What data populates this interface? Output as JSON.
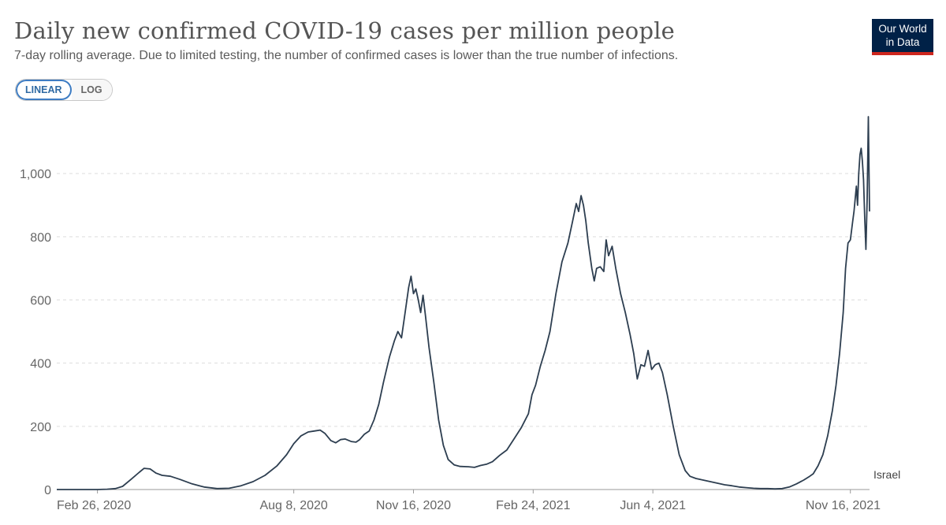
{
  "title": "Daily new confirmed COVID-19 cases per million people",
  "subtitle": "7-day rolling average. Due to limited testing, the number of confirmed cases is lower than the true number of infections.",
  "scale_toggle": {
    "linear_label": "LINEAR",
    "log_label": "LOG",
    "selected": "LINEAR"
  },
  "logo": {
    "line1": "Our World",
    "line2": "in Data"
  },
  "colors": {
    "line": "#2d3e50",
    "grid": "#dddddd",
    "logo_bg": "#002147",
    "logo_accent": "#ce261e",
    "toggle_accent": "#3d7cc3"
  },
  "chart_data": {
    "type": "line",
    "title": "Daily new confirmed COVID-19 cases per million people",
    "subtitle": "7-day rolling average. Due to limited testing, the number of confirmed cases is lower than the true number of infections.",
    "ylim": [
      0,
      1200
    ],
    "xlim": [
      "2020-01-23",
      "2021-12-02"
    ],
    "y_ticks": [
      {
        "value": 0,
        "label": "0"
      },
      {
        "value": 200,
        "label": "200"
      },
      {
        "value": 400,
        "label": "400"
      },
      {
        "value": 600,
        "label": "600"
      },
      {
        "value": 800,
        "label": "800"
      },
      {
        "value": 1000,
        "label": "1,000"
      }
    ],
    "x_ticks": [
      {
        "value": "2020-02-26",
        "label": "Feb 26, 2020"
      },
      {
        "value": "2020-08-08",
        "label": "Aug 8, 2020"
      },
      {
        "value": "2020-11-16",
        "label": "Nov 16, 2020"
      },
      {
        "value": "2021-02-24",
        "label": "Feb 24, 2021"
      },
      {
        "value": "2021-06-04",
        "label": "Jun 4, 2021"
      },
      {
        "value": "2021-11-16",
        "label": "Nov 16, 2021"
      }
    ],
    "grid": true,
    "legend": "end-of-line label",
    "series": [
      {
        "name": "Israel",
        "points": [
          [
            "2020-01-23",
            0
          ],
          [
            "2020-02-26",
            0
          ],
          [
            "2020-03-05",
            1
          ],
          [
            "2020-03-12",
            3
          ],
          [
            "2020-03-18",
            10
          ],
          [
            "2020-03-25",
            32
          ],
          [
            "2020-04-01",
            55
          ],
          [
            "2020-04-05",
            67
          ],
          [
            "2020-04-10",
            65
          ],
          [
            "2020-04-15",
            52
          ],
          [
            "2020-04-20",
            45
          ],
          [
            "2020-04-27",
            42
          ],
          [
            "2020-05-05",
            32
          ],
          [
            "2020-05-15",
            18
          ],
          [
            "2020-05-25",
            8
          ],
          [
            "2020-06-05",
            3
          ],
          [
            "2020-06-15",
            4
          ],
          [
            "2020-06-25",
            12
          ],
          [
            "2020-07-05",
            25
          ],
          [
            "2020-07-15",
            45
          ],
          [
            "2020-07-25",
            75
          ],
          [
            "2020-08-02",
            110
          ],
          [
            "2020-08-08",
            145
          ],
          [
            "2020-08-14",
            170
          ],
          [
            "2020-08-20",
            182
          ],
          [
            "2020-08-25",
            185
          ],
          [
            "2020-08-30",
            188
          ],
          [
            "2020-09-03",
            178
          ],
          [
            "2020-09-08",
            155
          ],
          [
            "2020-09-12",
            148
          ],
          [
            "2020-09-16",
            158
          ],
          [
            "2020-09-20",
            160
          ],
          [
            "2020-09-25",
            152
          ],
          [
            "2020-09-29",
            150
          ],
          [
            "2020-10-02",
            158
          ],
          [
            "2020-10-06",
            175
          ],
          [
            "2020-10-10",
            185
          ],
          [
            "2020-10-14",
            220
          ],
          [
            "2020-10-18",
            270
          ],
          [
            "2020-10-22",
            340
          ],
          [
            "2020-10-27",
            420
          ],
          [
            "2020-10-31",
            470
          ],
          [
            "2020-11-03",
            500
          ],
          [
            "2020-11-06",
            480
          ],
          [
            "2020-11-09",
            560
          ],
          [
            "2020-11-12",
            640
          ],
          [
            "2020-11-14",
            675
          ],
          [
            "2020-11-16",
            620
          ],
          [
            "2020-11-18",
            635
          ],
          [
            "2020-11-20",
            600
          ],
          [
            "2020-11-22",
            560
          ],
          [
            "2020-11-24",
            615
          ],
          [
            "2020-11-26",
            550
          ],
          [
            "2020-11-29",
            450
          ],
          [
            "2020-12-03",
            340
          ],
          [
            "2020-12-07",
            220
          ],
          [
            "2020-12-11",
            140
          ],
          [
            "2020-12-15",
            95
          ],
          [
            "2020-12-20",
            78
          ],
          [
            "2020-12-25",
            73
          ],
          [
            "2021-01-01",
            72
          ],
          [
            "2021-01-06",
            70
          ],
          [
            "2021-01-11",
            76
          ],
          [
            "2021-01-16",
            80
          ],
          [
            "2021-01-21",
            88
          ],
          [
            "2021-01-27",
            108
          ],
          [
            "2021-02-02",
            125
          ],
          [
            "2021-02-08",
            160
          ],
          [
            "2021-02-14",
            195
          ],
          [
            "2021-02-20",
            240
          ],
          [
            "2021-02-23",
            300
          ],
          [
            "2021-02-26",
            330
          ],
          [
            "2021-03-02",
            390
          ],
          [
            "2021-03-06",
            440
          ],
          [
            "2021-03-10",
            500
          ],
          [
            "2021-03-15",
            620
          ],
          [
            "2021-03-20",
            720
          ],
          [
            "2021-03-25",
            780
          ],
          [
            "2021-03-29",
            850
          ],
          [
            "2021-04-01",
            905
          ],
          [
            "2021-04-03",
            880
          ],
          [
            "2021-04-05",
            930
          ],
          [
            "2021-04-07",
            900
          ],
          [
            "2021-04-09",
            850
          ],
          [
            "2021-04-11",
            780
          ],
          [
            "2021-04-14",
            700
          ],
          [
            "2021-04-16",
            660
          ],
          [
            "2021-04-18",
            700
          ],
          [
            "2021-04-21",
            705
          ],
          [
            "2021-04-24",
            690
          ],
          [
            "2021-04-26",
            790
          ],
          [
            "2021-04-28",
            740
          ],
          [
            "2021-05-01",
            770
          ],
          [
            "2021-05-04",
            700
          ],
          [
            "2021-05-08",
            620
          ],
          [
            "2021-05-12",
            560
          ],
          [
            "2021-05-16",
            490
          ],
          [
            "2021-05-19",
            430
          ],
          [
            "2021-05-22",
            350
          ],
          [
            "2021-05-25",
            395
          ],
          [
            "2021-05-28",
            390
          ],
          [
            "2021-05-31",
            440
          ],
          [
            "2021-06-03",
            380
          ],
          [
            "2021-06-06",
            395
          ],
          [
            "2021-06-09",
            400
          ],
          [
            "2021-06-12",
            370
          ],
          [
            "2021-06-16",
            300
          ],
          [
            "2021-06-21",
            200
          ],
          [
            "2021-06-26",
            110
          ],
          [
            "2021-07-01",
            60
          ],
          [
            "2021-07-05",
            42
          ],
          [
            "2021-07-10",
            35
          ],
          [
            "2021-07-16",
            30
          ],
          [
            "2021-07-22",
            25
          ],
          [
            "2021-07-28",
            20
          ],
          [
            "2021-08-03",
            15
          ],
          [
            "2021-08-09",
            12
          ],
          [
            "2021-08-15",
            8
          ],
          [
            "2021-08-21",
            6
          ],
          [
            "2021-08-27",
            4
          ],
          [
            "2021-09-02",
            3
          ],
          [
            "2021-09-08",
            3
          ],
          [
            "2021-09-14",
            2
          ],
          [
            "2021-09-20",
            3
          ],
          [
            "2021-09-26",
            8
          ],
          [
            "2021-10-02",
            18
          ],
          [
            "2021-10-08",
            30
          ],
          [
            "2021-10-13",
            42
          ],
          [
            "2021-10-16",
            50
          ],
          [
            "2021-10-20",
            75
          ],
          [
            "2021-10-24",
            110
          ],
          [
            "2021-10-28",
            170
          ],
          [
            "2021-11-01",
            250
          ],
          [
            "2021-11-04",
            330
          ],
          [
            "2021-11-07",
            430
          ],
          [
            "2021-11-10",
            560
          ],
          [
            "2021-11-12",
            700
          ],
          [
            "2021-11-14",
            780
          ],
          [
            "2021-11-16",
            790
          ],
          [
            "2021-11-18",
            850
          ],
          [
            "2021-11-19",
            880
          ],
          [
            "2021-11-20",
            920
          ],
          [
            "2021-11-21",
            960
          ],
          [
            "2021-11-22",
            900
          ],
          [
            "2021-11-23",
            1000
          ],
          [
            "2021-11-24",
            1060
          ],
          [
            "2021-11-25",
            1080
          ],
          [
            "2021-11-26",
            1040
          ],
          [
            "2021-11-27",
            980
          ],
          [
            "2021-11-28",
            860
          ],
          [
            "2021-11-29",
            760
          ],
          [
            "2021-11-30",
            920
          ],
          [
            "2021-12-01",
            1180
          ],
          [
            "2021-12-02",
            880
          ]
        ]
      }
    ]
  }
}
